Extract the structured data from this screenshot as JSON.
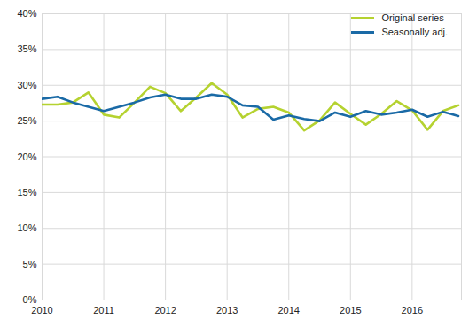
{
  "chart_data": {
    "type": "line",
    "x": [
      2010,
      2010.25,
      2010.5,
      2010.75,
      2011,
      2011.25,
      2011.5,
      2011.75,
      2012,
      2012.25,
      2012.5,
      2012.75,
      2013,
      2013.25,
      2013.5,
      2013.75,
      2014,
      2014.25,
      2014.5,
      2014.75,
      2015,
      2015.25,
      2015.5,
      2015.75,
      2016,
      2016.25,
      2016.5,
      2016.75
    ],
    "series": [
      {
        "name": "Original series",
        "color": "#b5d230",
        "values": [
          27.3,
          27.3,
          27.6,
          29.0,
          25.9,
          25.5,
          27.6,
          29.8,
          28.9,
          26.4,
          28.3,
          30.3,
          28.7,
          25.5,
          26.7,
          27.0,
          26.2,
          23.7,
          25.1,
          27.6,
          26.0,
          24.5,
          26.0,
          27.8,
          26.5,
          23.8,
          26.4,
          27.2
        ]
      },
      {
        "name": "Seasonally adj.",
        "color": "#1a6aa6",
        "values": [
          28.1,
          28.4,
          27.6,
          27.0,
          26.4,
          27.0,
          27.6,
          28.3,
          28.7,
          28.1,
          28.1,
          28.7,
          28.4,
          27.2,
          27.0,
          25.2,
          25.8,
          25.3,
          25.0,
          26.2,
          25.6,
          26.4,
          25.9,
          26.2,
          26.6,
          25.6,
          26.3,
          25.7
        ]
      }
    ],
    "xlim": [
      2010,
      2016.8
    ],
    "xticks": [
      2010,
      2011,
      2012,
      2013,
      2014,
      2015,
      2016
    ],
    "ylim": [
      0,
      40
    ],
    "yticks": [
      {
        "value": 0,
        "label": "0%"
      },
      {
        "value": 5,
        "label": "5%"
      },
      {
        "value": 10,
        "label": "10%"
      },
      {
        "value": 15,
        "label": "15%"
      },
      {
        "value": 20,
        "label": "20%"
      },
      {
        "value": 25,
        "label": "25%"
      },
      {
        "value": 30,
        "label": "30%"
      },
      {
        "value": 35,
        "label": "35%"
      },
      {
        "value": 40,
        "label": "40%"
      }
    ],
    "grid": true,
    "legend": "top-right"
  }
}
